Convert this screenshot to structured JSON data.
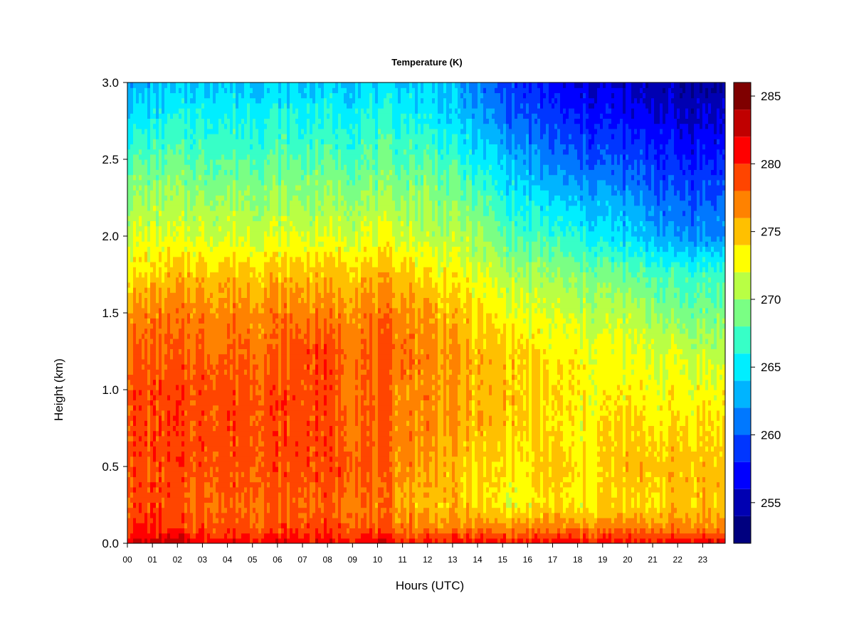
{
  "chart_data": {
    "type": "heatmap",
    "title": "Temperature (K)",
    "xlabel": "Hours (UTC)",
    "ylabel": "Height (km)",
    "xlim": [
      0,
      23.9
    ],
    "ylim": [
      0.0,
      3.0
    ],
    "x_ticks": [
      "00",
      "01",
      "02",
      "03",
      "04",
      "05",
      "06",
      "07",
      "08",
      "09",
      "10",
      "11",
      "12",
      "13",
      "14",
      "15",
      "16",
      "17",
      "18",
      "19",
      "20",
      "21",
      "22",
      "23"
    ],
    "y_ticks": [
      "0.0",
      "0.5",
      "1.0",
      "1.5",
      "2.0",
      "2.5",
      "3.0"
    ],
    "colorbar": {
      "levels": [
        252,
        254,
        256,
        258,
        260,
        262,
        264,
        266,
        268,
        270,
        272,
        274,
        276,
        278,
        280,
        282,
        284,
        286
      ],
      "colors": [
        "#00007F",
        "#0000B2",
        "#0000FF",
        "#0036FF",
        "#0078FF",
        "#00B4FF",
        "#00EEFF",
        "#37FFC7",
        "#7AFF84",
        "#B9FF44",
        "#FFFF00",
        "#FFC000",
        "#FF8200",
        "#FF4500",
        "#FF0000",
        "#C00000",
        "#7F0000"
      ],
      "tick_labels": [
        "255",
        "260",
        "265",
        "270",
        "275",
        "280",
        "285"
      ],
      "tick_values": [
        255,
        260,
        265,
        270,
        275,
        280,
        285
      ]
    },
    "hours": [
      0,
      1,
      2,
      3,
      4,
      5,
      6,
      7,
      8,
      9,
      10,
      11,
      12,
      13,
      14,
      15,
      16,
      17,
      18,
      19,
      20,
      21,
      22,
      23,
      23.9
    ],
    "heights_km": [
      0.0,
      0.02,
      0.05,
      0.1,
      0.25,
      0.5,
      0.75,
      1.0,
      1.25,
      1.5,
      1.75,
      2.0,
      2.25,
      2.5,
      2.75,
      3.0
    ],
    "temperature_K": [
      [
        283,
        283,
        283,
        283,
        282,
        282,
        282,
        282,
        282,
        282,
        282,
        281,
        281,
        281,
        281,
        281,
        281,
        281,
        281,
        281,
        281,
        281,
        282,
        282,
        282
      ],
      [
        282,
        282,
        282,
        281,
        281,
        281,
        281,
        281,
        281,
        281,
        281,
        280,
        280,
        280,
        280,
        280,
        280,
        280,
        280,
        280,
        280,
        280,
        281,
        281,
        281
      ],
      [
        281,
        281,
        281,
        280,
        280,
        280,
        280,
        280,
        280,
        280,
        280,
        279,
        279,
        279,
        279,
        279,
        279,
        279,
        279,
        279,
        279,
        279,
        279,
        279,
        279
      ],
      [
        280,
        280,
        279,
        279,
        279,
        279,
        279,
        279,
        279,
        279,
        278,
        278,
        277,
        277,
        277,
        277,
        277,
        277,
        277,
        277,
        277,
        277,
        277,
        277,
        277
      ],
      [
        279,
        279,
        278,
        278,
        278,
        278,
        278,
        278,
        278,
        278,
        277,
        276,
        275,
        275,
        274,
        273,
        273,
        274,
        273,
        274,
        274,
        274,
        275,
        275,
        275
      ],
      [
        279,
        279,
        279,
        279,
        279,
        279,
        279,
        279,
        279,
        279,
        278,
        277,
        276,
        275,
        274,
        274,
        273,
        275,
        273,
        274,
        275,
        275,
        275,
        275,
        275
      ],
      [
        279,
        279,
        279,
        279,
        279,
        279,
        279,
        279,
        279,
        278,
        278,
        277,
        277,
        276,
        275,
        275,
        274,
        274,
        273,
        274,
        274,
        274,
        274,
        274,
        274
      ],
      [
        279,
        279,
        279,
        279,
        279,
        279,
        279,
        279,
        279,
        278,
        278,
        277,
        277,
        276,
        275,
        275,
        274,
        274,
        273,
        273,
        273,
        273,
        273,
        273,
        273
      ],
      [
        278,
        278,
        278,
        278,
        278,
        278,
        278,
        279,
        279,
        278,
        278,
        278,
        277,
        276,
        275,
        275,
        274,
        273,
        273,
        273,
        272,
        272,
        272,
        271,
        271
      ],
      [
        277,
        277,
        277,
        277,
        277,
        277,
        277,
        277,
        277,
        277,
        277,
        277,
        276,
        275,
        274,
        273,
        272,
        272,
        271,
        271,
        271,
        270,
        269,
        269,
        269
      ],
      [
        274,
        274,
        275,
        275,
        275,
        275,
        275,
        275,
        275,
        275,
        275,
        275,
        274,
        273,
        272,
        271,
        270,
        270,
        269,
        269,
        268,
        268,
        267,
        267,
        267
      ],
      [
        272,
        272,
        272,
        272,
        272,
        272,
        272,
        272,
        272,
        272,
        272,
        272,
        271,
        271,
        270,
        268,
        267,
        267,
        266,
        265,
        264,
        263,
        262,
        262,
        262
      ],
      [
        270,
        270,
        270,
        270,
        270,
        270,
        270,
        270,
        270,
        270,
        270,
        270,
        270,
        269,
        268,
        266,
        265,
        264,
        263,
        263,
        262,
        261,
        260,
        260,
        260
      ],
      [
        268,
        268,
        268,
        268,
        268,
        268,
        268,
        268,
        268,
        268,
        268,
        268,
        268,
        267,
        265,
        264,
        262,
        261,
        260,
        260,
        259,
        259,
        258,
        258,
        258
      ],
      [
        265,
        265,
        266,
        266,
        266,
        266,
        266,
        266,
        266,
        266,
        266,
        266,
        266,
        264,
        263,
        261,
        260,
        259,
        258,
        258,
        257,
        257,
        256,
        256,
        256
      ],
      [
        263,
        263,
        263,
        264,
        264,
        264,
        264,
        264,
        264,
        264,
        264,
        264,
        264,
        263,
        261,
        259,
        258,
        257,
        256,
        256,
        255,
        255,
        254,
        254,
        254
      ]
    ]
  }
}
